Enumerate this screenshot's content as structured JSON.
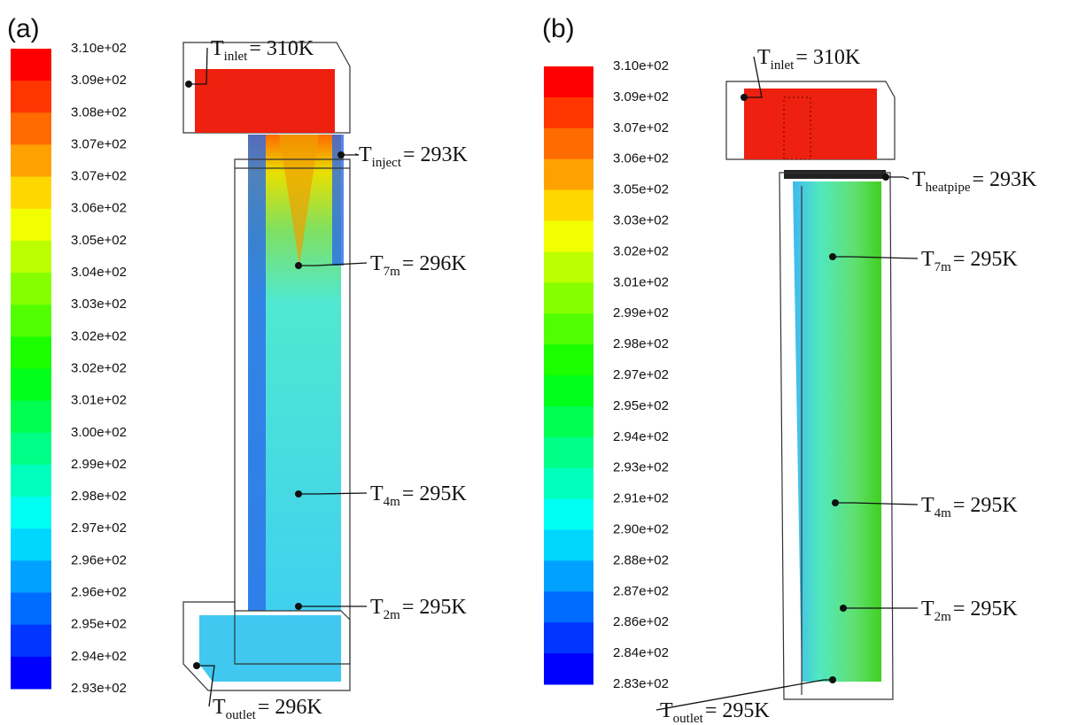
{
  "panels": [
    {
      "label": "(a)",
      "colorbar": [
        "3.10e+02",
        "3.09e+02",
        "3.08e+02",
        "3.07e+02",
        "3.07e+02",
        "3.06e+02",
        "3.05e+02",
        "3.04e+02",
        "3.03e+02",
        "3.02e+02",
        "3.02e+02",
        "3.01e+02",
        "3.00e+02",
        "2.99e+02",
        "2.98e+02",
        "2.97e+02",
        "2.96e+02",
        "2.96e+02",
        "2.95e+02",
        "2.94e+02",
        "2.93e+02"
      ],
      "annotations": [
        {
          "symbol": "T",
          "subscript": "inlet",
          "text": "= 310K"
        },
        {
          "symbol": "T",
          "subscript": "inject",
          "text": "= 293K"
        },
        {
          "symbol": "T",
          "subscript": "7m",
          "text": "= 296K"
        },
        {
          "symbol": "T",
          "subscript": "4m",
          "text": "= 295K"
        },
        {
          "symbol": "T",
          "subscript": "2m",
          "text": "= 295K"
        },
        {
          "symbol": "T",
          "subscript": "outlet",
          "text": "= 296K"
        }
      ]
    },
    {
      "label": "(b)",
      "colorbar": [
        "3.10e+02",
        "3.09e+02",
        "3.07e+02",
        "3.06e+02",
        "3.05e+02",
        "3.03e+02",
        "3.02e+02",
        "3.01e+02",
        "2.99e+02",
        "2.98e+02",
        "2.97e+02",
        "2.95e+02",
        "2.94e+02",
        "2.93e+02",
        "2.91e+02",
        "2.90e+02",
        "2.88e+02",
        "2.87e+02",
        "2.86e+02",
        "2.84e+02",
        "2.83e+02"
      ],
      "annotations": [
        {
          "symbol": "T",
          "subscript": "inlet",
          "text": "= 310K"
        },
        {
          "symbol": "T",
          "subscript": "heatpipe",
          "text": "= 293K"
        },
        {
          "symbol": "T",
          "subscript": "7m",
          "text": "= 295K"
        },
        {
          "symbol": "T",
          "subscript": "4m",
          "text": "= 295K"
        },
        {
          "symbol": "T",
          "subscript": "2m",
          "text": "= 295K"
        },
        {
          "symbol": "T",
          "subscript": "outlet",
          "text": "= 295K"
        }
      ]
    }
  ]
}
